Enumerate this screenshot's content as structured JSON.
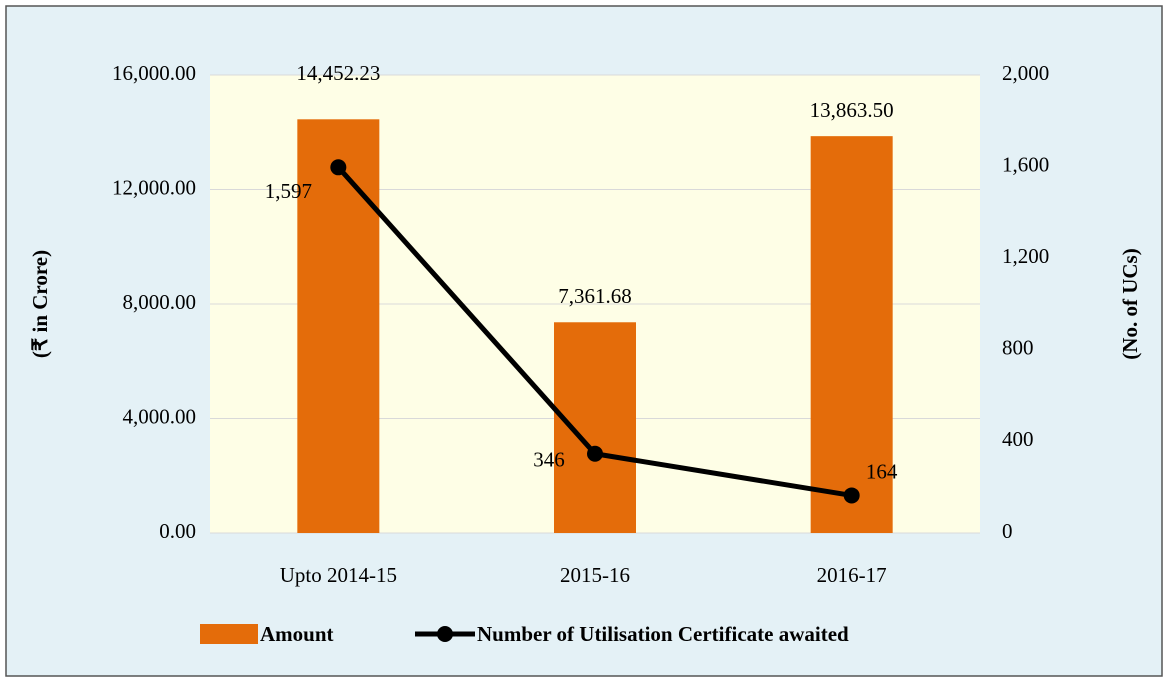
{
  "chart_data": {
    "type": "bar",
    "categories": [
      "Upto 2014-15",
      "2015-16",
      "2016-17"
    ],
    "series": [
      {
        "name": "Amount",
        "type": "bar",
        "color": "#e46c0a",
        "values": [
          14452.23,
          7361.68,
          13863.5
        ],
        "value_labels": [
          "14,452.23",
          "7,361.68",
          "13,863.50"
        ]
      },
      {
        "name": "Number of Utilisation Certificate awaited",
        "type": "line",
        "axis": "y2",
        "color": "#000000",
        "values": [
          1597,
          346,
          164
        ],
        "value_labels": [
          "1,597",
          "346",
          "164"
        ]
      }
    ],
    "ylabel": "(₹ in Crore)",
    "y2label": "(No. of UCs)",
    "ylim": [
      0,
      16000
    ],
    "yticks": [
      {
        "value": 0,
        "label": "0.00"
      },
      {
        "value": 4000,
        "label": "4,000.00"
      },
      {
        "value": 8000,
        "label": "8,000.00"
      },
      {
        "value": 12000,
        "label": "12,000.00"
      },
      {
        "value": 16000,
        "label": "16,000.00"
      }
    ],
    "y2lim": [
      0,
      2000
    ],
    "y2ticks": [
      0,
      400,
      800,
      {
        "value": 1200,
        "label": "1,200"
      },
      {
        "value": 1600,
        "label": "1,600"
      },
      {
        "value": 2000,
        "label": "2,000"
      }
    ],
    "grid": true,
    "legend": "bottom"
  }
}
